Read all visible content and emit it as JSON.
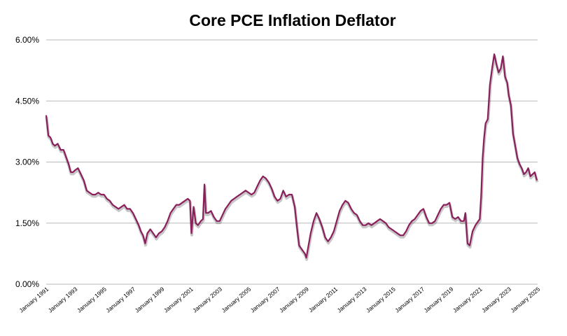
{
  "chart_data": {
    "type": "line",
    "title": "Core PCE Inflation Deflator",
    "xlabel": "",
    "ylabel": "",
    "yticks": [
      "0.00%",
      "1.50%",
      "3.00%",
      "4.50%",
      "6.00%"
    ],
    "ytick_values": [
      0,
      1.5,
      3,
      4.5,
      6
    ],
    "ylim": [
      0,
      6
    ],
    "xticks": [
      "January 1991",
      "January 1993",
      "January 1995",
      "January 1997",
      "January 1999",
      "January 2001",
      "January 2003",
      "January 2005",
      "January 2007",
      "January 2009",
      "January 2011",
      "January 2013",
      "January 2015",
      "January 2017",
      "January 2019",
      "January 2021",
      "January 2023",
      "January 2025"
    ],
    "xtick_values": [
      1991,
      1993,
      1995,
      1997,
      1999,
      2001,
      2003,
      2005,
      2007,
      2009,
      2011,
      2013,
      2015,
      2017,
      2019,
      2021,
      2023,
      2025
    ],
    "xlim": [
      1991,
      2025
    ],
    "grid": true,
    "line_color": "#8b1f5c",
    "series": [
      {
        "values": [
          [
            1991.0,
            4.15
          ],
          [
            1991.15,
            3.65
          ],
          [
            1991.3,
            3.6
          ],
          [
            1991.45,
            3.45
          ],
          [
            1991.6,
            3.4
          ],
          [
            1991.8,
            3.45
          ],
          [
            1992.0,
            3.3
          ],
          [
            1992.2,
            3.3
          ],
          [
            1992.4,
            3.1
          ],
          [
            1992.55,
            2.95
          ],
          [
            1992.7,
            2.75
          ],
          [
            1992.85,
            2.75
          ],
          [
            1993.0,
            2.8
          ],
          [
            1993.2,
            2.85
          ],
          [
            1993.4,
            2.7
          ],
          [
            1993.6,
            2.55
          ],
          [
            1993.8,
            2.3
          ],
          [
            1994.0,
            2.25
          ],
          [
            1994.2,
            2.2
          ],
          [
            1994.4,
            2.2
          ],
          [
            1994.6,
            2.25
          ],
          [
            1994.8,
            2.2
          ],
          [
            1995.0,
            2.2
          ],
          [
            1995.2,
            2.1
          ],
          [
            1995.4,
            2.05
          ],
          [
            1995.6,
            1.95
          ],
          [
            1995.8,
            1.9
          ],
          [
            1996.0,
            1.85
          ],
          [
            1996.2,
            1.9
          ],
          [
            1996.4,
            1.95
          ],
          [
            1996.6,
            1.85
          ],
          [
            1996.8,
            1.85
          ],
          [
            1997.0,
            1.75
          ],
          [
            1997.2,
            1.6
          ],
          [
            1997.4,
            1.45
          ],
          [
            1997.55,
            1.3
          ],
          [
            1997.7,
            1.2
          ],
          [
            1997.85,
            1.0
          ],
          [
            1998.0,
            1.25
          ],
          [
            1998.2,
            1.35
          ],
          [
            1998.4,
            1.25
          ],
          [
            1998.6,
            1.15
          ],
          [
            1998.8,
            1.25
          ],
          [
            1999.0,
            1.3
          ],
          [
            1999.2,
            1.4
          ],
          [
            1999.4,
            1.55
          ],
          [
            1999.6,
            1.75
          ],
          [
            1999.8,
            1.85
          ],
          [
            2000.0,
            1.95
          ],
          [
            2000.2,
            1.95
          ],
          [
            2000.4,
            2.0
          ],
          [
            2000.6,
            2.05
          ],
          [
            2000.8,
            2.1
          ],
          [
            2000.95,
            2.05
          ],
          [
            2001.05,
            1.25
          ],
          [
            2001.2,
            1.9
          ],
          [
            2001.35,
            1.5
          ],
          [
            2001.5,
            1.45
          ],
          [
            2001.7,
            1.55
          ],
          [
            2001.85,
            1.6
          ],
          [
            2001.95,
            2.45
          ],
          [
            2002.05,
            1.75
          ],
          [
            2002.2,
            1.75
          ],
          [
            2002.4,
            1.8
          ],
          [
            2002.6,
            1.65
          ],
          [
            2002.8,
            1.55
          ],
          [
            2003.0,
            1.55
          ],
          [
            2003.2,
            1.7
          ],
          [
            2003.4,
            1.85
          ],
          [
            2003.6,
            1.95
          ],
          [
            2003.8,
            2.05
          ],
          [
            2004.0,
            2.1
          ],
          [
            2004.2,
            2.15
          ],
          [
            2004.4,
            2.2
          ],
          [
            2004.6,
            2.25
          ],
          [
            2004.8,
            2.3
          ],
          [
            2005.0,
            2.25
          ],
          [
            2005.2,
            2.2
          ],
          [
            2005.4,
            2.25
          ],
          [
            2005.6,
            2.4
          ],
          [
            2005.8,
            2.55
          ],
          [
            2006.0,
            2.65
          ],
          [
            2006.2,
            2.6
          ],
          [
            2006.4,
            2.5
          ],
          [
            2006.6,
            2.35
          ],
          [
            2006.8,
            2.15
          ],
          [
            2007.0,
            2.05
          ],
          [
            2007.2,
            2.1
          ],
          [
            2007.4,
            2.3
          ],
          [
            2007.6,
            2.15
          ],
          [
            2007.8,
            2.2
          ],
          [
            2008.0,
            2.2
          ],
          [
            2008.2,
            1.9
          ],
          [
            2008.35,
            1.4
          ],
          [
            2008.5,
            0.95
          ],
          [
            2008.7,
            0.85
          ],
          [
            2008.9,
            0.75
          ],
          [
            2009.0,
            0.65
          ],
          [
            2009.15,
            0.95
          ],
          [
            2009.3,
            1.25
          ],
          [
            2009.5,
            1.55
          ],
          [
            2009.7,
            1.75
          ],
          [
            2009.9,
            1.6
          ],
          [
            2010.1,
            1.4
          ],
          [
            2010.3,
            1.15
          ],
          [
            2010.5,
            1.05
          ],
          [
            2010.7,
            1.15
          ],
          [
            2010.9,
            1.3
          ],
          [
            2011.1,
            1.55
          ],
          [
            2011.3,
            1.8
          ],
          [
            2011.5,
            1.95
          ],
          [
            2011.7,
            2.05
          ],
          [
            2011.9,
            2.0
          ],
          [
            2012.1,
            1.85
          ],
          [
            2012.3,
            1.75
          ],
          [
            2012.5,
            1.7
          ],
          [
            2012.7,
            1.55
          ],
          [
            2012.9,
            1.45
          ],
          [
            2013.1,
            1.45
          ],
          [
            2013.3,
            1.5
          ],
          [
            2013.5,
            1.45
          ],
          [
            2013.7,
            1.5
          ],
          [
            2013.9,
            1.55
          ],
          [
            2014.1,
            1.6
          ],
          [
            2014.3,
            1.55
          ],
          [
            2014.5,
            1.5
          ],
          [
            2014.7,
            1.4
          ],
          [
            2014.9,
            1.35
          ],
          [
            2015.1,
            1.3
          ],
          [
            2015.3,
            1.25
          ],
          [
            2015.5,
            1.2
          ],
          [
            2015.7,
            1.2
          ],
          [
            2015.9,
            1.3
          ],
          [
            2016.1,
            1.45
          ],
          [
            2016.3,
            1.55
          ],
          [
            2016.5,
            1.6
          ],
          [
            2016.7,
            1.7
          ],
          [
            2016.9,
            1.8
          ],
          [
            2017.1,
            1.85
          ],
          [
            2017.3,
            1.65
          ],
          [
            2017.5,
            1.5
          ],
          [
            2017.7,
            1.5
          ],
          [
            2017.9,
            1.55
          ],
          [
            2018.1,
            1.7
          ],
          [
            2018.3,
            1.85
          ],
          [
            2018.5,
            1.95
          ],
          [
            2018.7,
            1.95
          ],
          [
            2018.9,
            2.0
          ],
          [
            2019.1,
            1.65
          ],
          [
            2019.3,
            1.6
          ],
          [
            2019.5,
            1.65
          ],
          [
            2019.7,
            1.55
          ],
          [
            2019.9,
            1.55
          ],
          [
            2020.0,
            1.75
          ],
          [
            2020.15,
            1.0
          ],
          [
            2020.3,
            0.95
          ],
          [
            2020.5,
            1.3
          ],
          [
            2020.7,
            1.45
          ],
          [
            2020.9,
            1.55
          ],
          [
            2021.0,
            1.6
          ],
          [
            2021.1,
            2.2
          ],
          [
            2021.2,
            3.1
          ],
          [
            2021.3,
            3.6
          ],
          [
            2021.4,
            3.95
          ],
          [
            2021.55,
            4.05
          ],
          [
            2021.7,
            4.9
          ],
          [
            2021.85,
            5.3
          ],
          [
            2022.0,
            5.65
          ],
          [
            2022.15,
            5.4
          ],
          [
            2022.3,
            5.2
          ],
          [
            2022.45,
            5.3
          ],
          [
            2022.6,
            5.6
          ],
          [
            2022.75,
            5.1
          ],
          [
            2022.9,
            4.95
          ],
          [
            2023.0,
            4.65
          ],
          [
            2023.15,
            4.4
          ],
          [
            2023.3,
            3.7
          ],
          [
            2023.45,
            3.4
          ],
          [
            2023.6,
            3.1
          ],
          [
            2023.75,
            2.95
          ],
          [
            2023.9,
            2.85
          ],
          [
            2024.05,
            2.7
          ],
          [
            2024.2,
            2.75
          ],
          [
            2024.35,
            2.85
          ],
          [
            2024.5,
            2.65
          ],
          [
            2024.65,
            2.7
          ],
          [
            2024.8,
            2.75
          ],
          [
            2024.95,
            2.55
          ]
        ]
      }
    ]
  }
}
